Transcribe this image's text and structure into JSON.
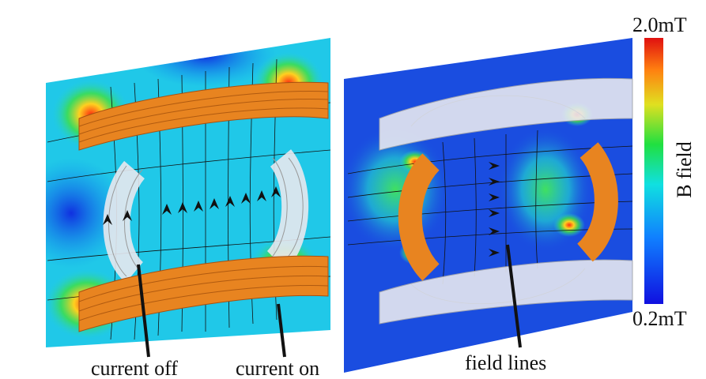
{
  "annotations": [
    "current off",
    "current on",
    "field lines"
  ],
  "colorbar": {
    "title": "B field",
    "max_label": "2.0mT",
    "min_label": "0.2mT"
  }
}
